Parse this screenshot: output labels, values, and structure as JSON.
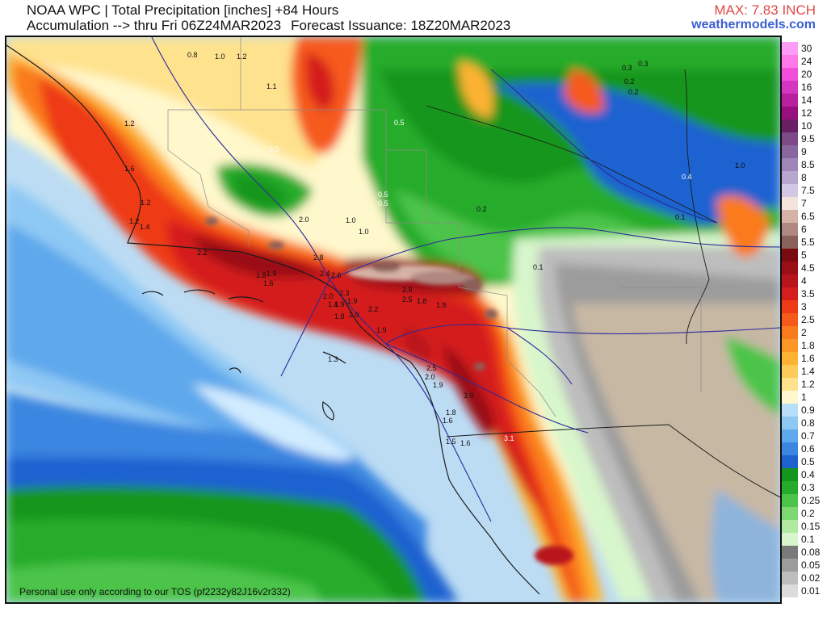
{
  "header": {
    "title_line1": "NOAA WPC | Total Precipitation [inches] +84 Hours",
    "title_line2_a": "Accumulation --> thru Fri 06Z24MAR2023",
    "title_line2_b": "Forecast Issuance: 18Z20MAR2023",
    "max_label": "MAX: 7.83 INCH",
    "brand": "weathermodels.com"
  },
  "footer": {
    "tos_note": "Personal use only according to our TOS (pf2232y82J16v2r332)"
  },
  "legend": {
    "items": [
      {
        "label": "30",
        "color": "#ff9cf5"
      },
      {
        "label": "24",
        "color": "#ff7ae8"
      },
      {
        "label": "20",
        "color": "#f24edb"
      },
      {
        "label": "16",
        "color": "#d436c2"
      },
      {
        "label": "14",
        "color": "#b8209e"
      },
      {
        "label": "12",
        "color": "#981080"
      },
      {
        "label": "10",
        "color": "#6a1e64"
      },
      {
        "label": "9.5",
        "color": "#7c4a86"
      },
      {
        "label": "9",
        "color": "#8a66a0"
      },
      {
        "label": "8.5",
        "color": "#9e86b8"
      },
      {
        "label": "8",
        "color": "#b6a6d0"
      },
      {
        "label": "7.5",
        "color": "#d2c8e6"
      },
      {
        "label": "7",
        "color": "#f2e4dc"
      },
      {
        "label": "6.5",
        "color": "#d6b2a6"
      },
      {
        "label": "6",
        "color": "#b08880"
      },
      {
        "label": "5.5",
        "color": "#8a605a"
      },
      {
        "label": "5",
        "color": "#7a0a12"
      },
      {
        "label": "4.5",
        "color": "#9a0e16"
      },
      {
        "label": "4",
        "color": "#b8141c"
      },
      {
        "label": "3.5",
        "color": "#d41e1e"
      },
      {
        "label": "3",
        "color": "#ee3a16"
      },
      {
        "label": "2.5",
        "color": "#f65a1a"
      },
      {
        "label": "2",
        "color": "#fa7a1e"
      },
      {
        "label": "1.8",
        "color": "#fc9626"
      },
      {
        "label": "1.6",
        "color": "#fdb232"
      },
      {
        "label": "1.4",
        "color": "#fdcc58"
      },
      {
        "label": "1.2",
        "color": "#fee28e"
      },
      {
        "label": "1",
        "color": "#fff8cc"
      },
      {
        "label": "0.9",
        "color": "#b6e0fa"
      },
      {
        "label": "0.8",
        "color": "#8ec8f4"
      },
      {
        "label": "0.7",
        "color": "#5ea8ec"
      },
      {
        "label": "0.6",
        "color": "#3a86e0"
      },
      {
        "label": "0.5",
        "color": "#1e62d0"
      },
      {
        "label": "0.4",
        "color": "#14961e"
      },
      {
        "label": "0.3",
        "color": "#26ac2c"
      },
      {
        "label": "0.25",
        "color": "#4cc44a"
      },
      {
        "label": "0.2",
        "color": "#7ed872"
      },
      {
        "label": "0.15",
        "color": "#b0eaa0"
      },
      {
        "label": "0.1",
        "color": "#d8f6cc"
      },
      {
        "label": "0.08",
        "color": "#7a7a7a"
      },
      {
        "label": "0.05",
        "color": "#9c9c9c"
      },
      {
        "label": "0.02",
        "color": "#bdbdbd"
      },
      {
        "label": "0.01",
        "color": "#dcdcdc"
      }
    ]
  },
  "map": {
    "point_labels": [
      "0.8",
      "1.0",
      "1.2",
      "1.1",
      "1.2",
      "1.6",
      "1.2",
      "1.2",
      "1.4",
      "0.5",
      "0.5",
      "0.5",
      "0.5",
      "0.3",
      "0.3",
      "0.2",
      "0.2",
      "0.4",
      "1.0",
      "0.1",
      "0.2",
      "0.1",
      "2.2",
      "1.8",
      "1.9",
      "1.6",
      "2.8",
      "2.6",
      "2.4",
      "2.0",
      "1.0",
      "1.0",
      "2.0",
      "2.3",
      "1.9",
      "1.8",
      "2.0",
      "2.2",
      "1.9",
      "2.9",
      "2.5",
      "1.8",
      "1.9",
      "1.3",
      "2.5",
      "2.0",
      "1.9",
      "3.0",
      "1.8",
      "1.6",
      "1.5",
      "1.6",
      "3.1",
      "1.9",
      "1.4"
    ]
  }
}
